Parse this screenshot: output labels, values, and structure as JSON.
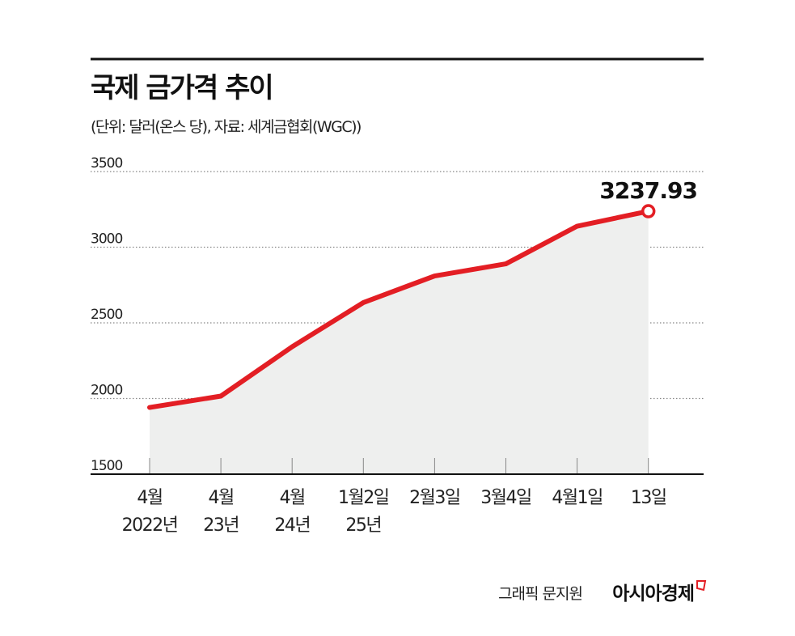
{
  "chart_data": {
    "type": "area",
    "title": "국제 금가격 추이",
    "subtitle": "(단위: 달러(온스 당), 자료: 세계금협회(WGC))",
    "categories": [
      [
        "4월",
        "2022년"
      ],
      [
        "4월",
        "23년"
      ],
      [
        "4월",
        "24년"
      ],
      [
        "1월2일",
        "25년"
      ],
      [
        "2월3일"
      ],
      [
        "3월4일"
      ],
      [
        "4월1일"
      ],
      [
        "13일"
      ]
    ],
    "values": [
      1941,
      2016,
      2342,
      2634,
      2810,
      2890,
      3139,
      3237.93
    ],
    "ylim": [
      1500,
      3500
    ],
    "yticks": [
      1500,
      2000,
      2500,
      3000,
      3500
    ],
    "grid": true,
    "annotation": "3237.93",
    "colors": {
      "line": "#e31e24",
      "area": "#eeefee",
      "grid": "#888888"
    }
  },
  "credit": "그래픽 문지원",
  "brand": "아시아경제"
}
